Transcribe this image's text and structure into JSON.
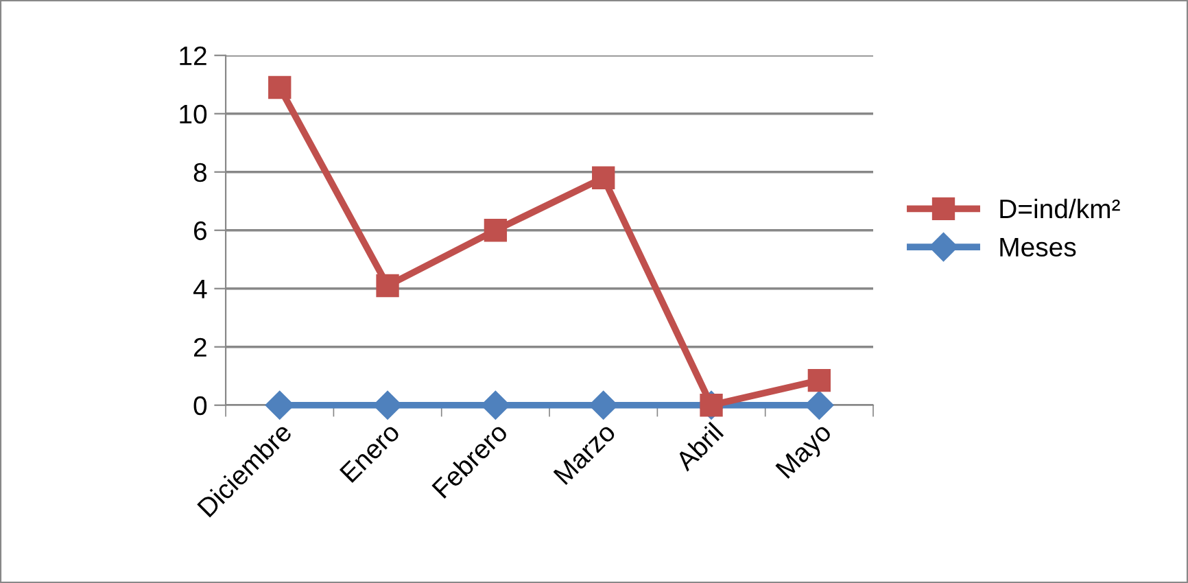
{
  "chart_data": {
    "type": "line",
    "categories": [
      "Diciembre",
      "Enero",
      "Febrero",
      "Marzo",
      "Abril",
      "Mayo"
    ],
    "series": [
      {
        "name": "D=ind/km²",
        "color": "#c0504d",
        "marker": "square",
        "values": [
          10.9,
          4.1,
          6.0,
          7.8,
          0,
          0.85
        ]
      },
      {
        "name": "Meses",
        "color": "#4f81bd",
        "marker": "diamond",
        "values": [
          0,
          0,
          0,
          0,
          0,
          0
        ]
      }
    ],
    "ylim": [
      0,
      12
    ],
    "yticks": [
      0,
      2,
      4,
      6,
      8,
      10,
      12
    ],
    "grid": "y",
    "legend": "right",
    "line_style": "solid"
  }
}
